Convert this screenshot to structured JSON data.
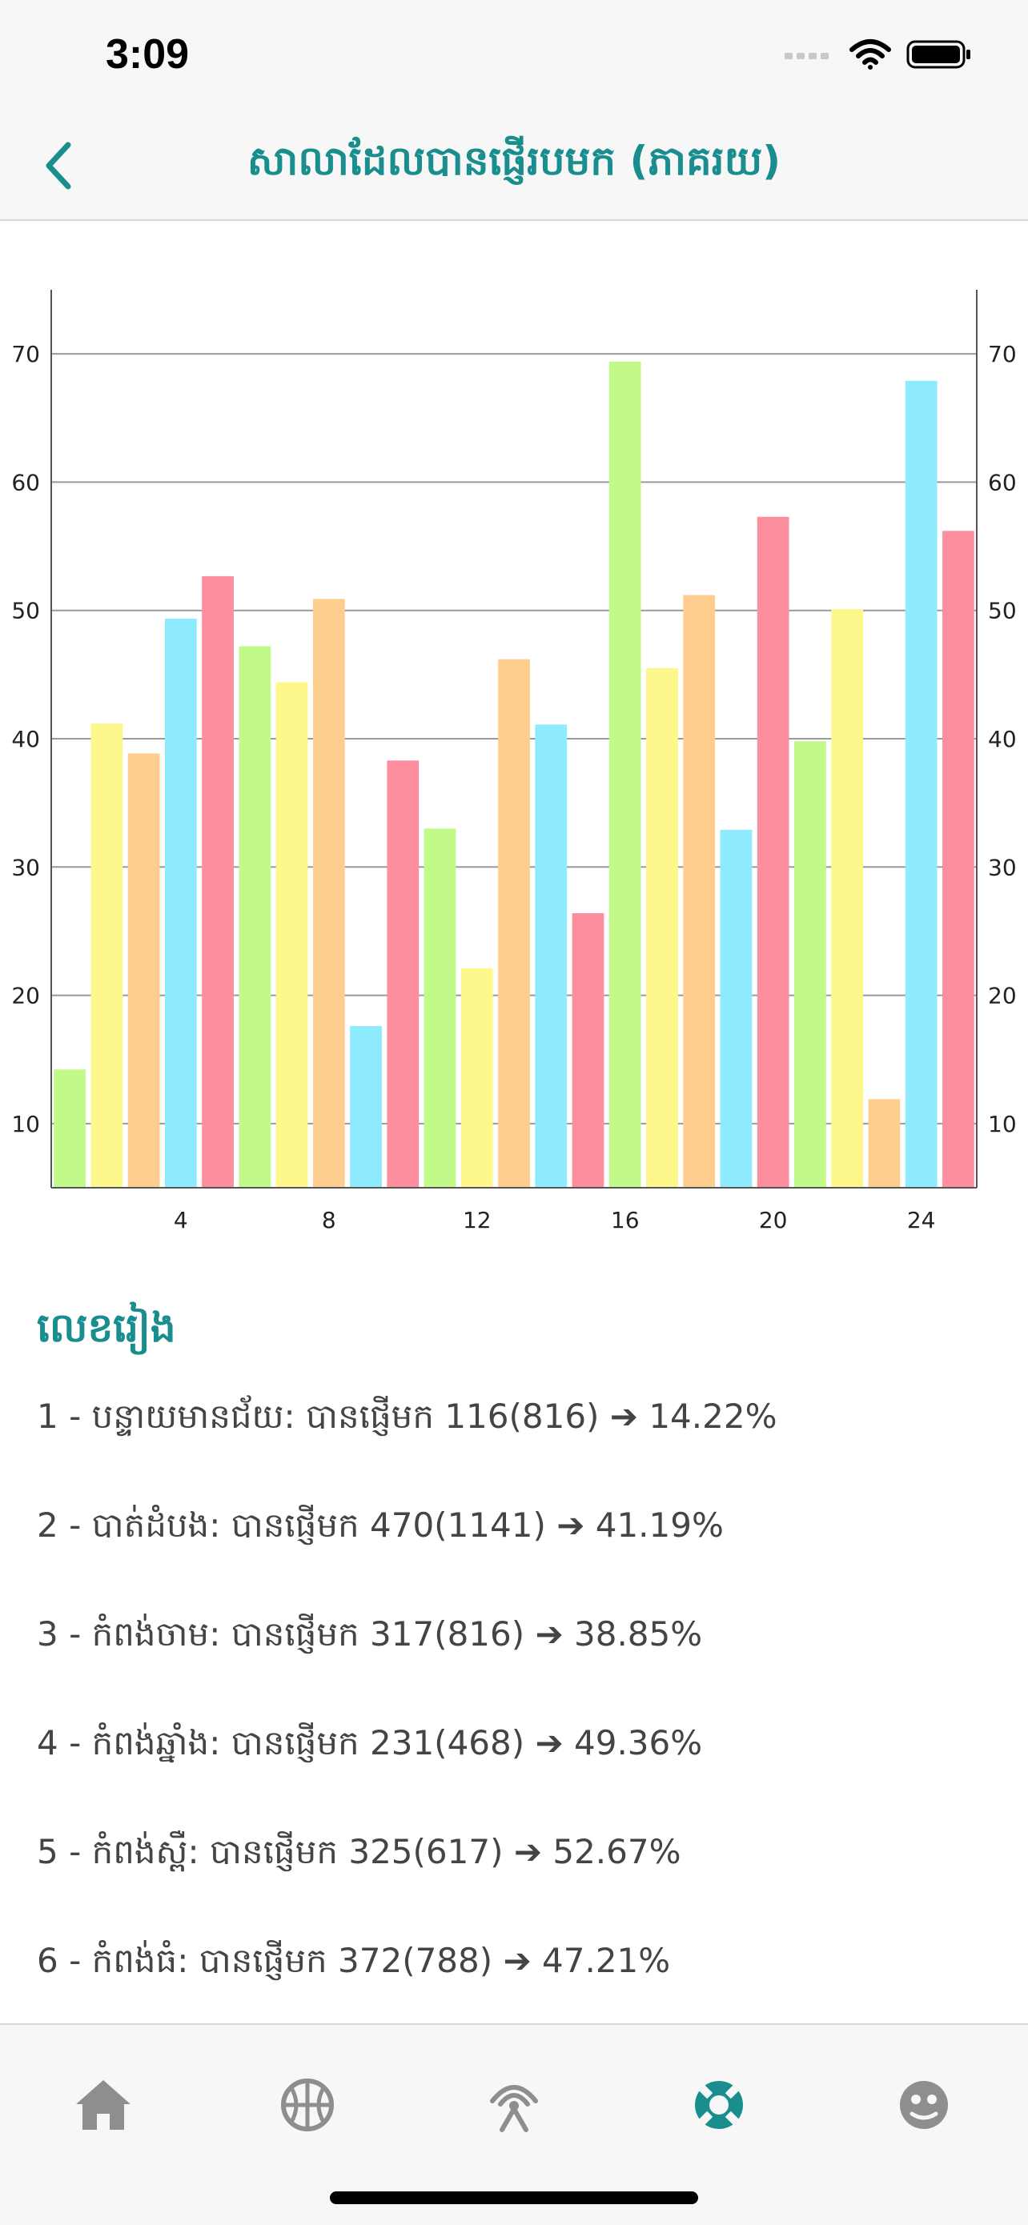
{
  "status_bar": {
    "time": "3:09"
  },
  "header": {
    "title": "សាលាដែលបានផ្ញើរបមក (ភាគរយ)"
  },
  "chart_data": {
    "type": "bar",
    "x": [
      1,
      2,
      3,
      4,
      5,
      6,
      7,
      8,
      9,
      10,
      11,
      12,
      13,
      14,
      15,
      16,
      17,
      18,
      19,
      20,
      21,
      22,
      23,
      24,
      25
    ],
    "values": [
      14.22,
      41.19,
      38.85,
      49.36,
      52.67,
      47.21,
      44.4,
      50.9,
      17.6,
      38.3,
      33.0,
      22.1,
      46.2,
      41.1,
      26.4,
      69.4,
      45.5,
      51.2,
      32.9,
      57.3,
      39.8,
      50.1,
      11.9,
      67.9,
      56.2
    ],
    "x_ticks": [
      4,
      8,
      12,
      16,
      20,
      24
    ],
    "y_ticks": [
      10,
      20,
      30,
      40,
      50,
      60,
      70
    ],
    "ylim": [
      5,
      75
    ],
    "grid": true,
    "palette": [
      "#c2fa8a",
      "#fdf78c",
      "#fece8f",
      "#8eeafd",
      "#fd8e9e"
    ]
  },
  "legend": {
    "title": "លេខរៀង",
    "items": [
      "1 - បន្ទាយមានជ័យ: បានផ្ញើមក 116(816) ➔ 14.22%",
      "2 - បាត់ដំបង: បានផ្ញើមក 470(1141) ➔ 41.19%",
      "3 - កំពង់ចាម: បានផ្ញើមក 317(816) ➔ 38.85%",
      "4 - កំពង់ឆ្នាំង: បានផ្ញើមក 231(468) ➔ 49.36%",
      "5 - កំពង់ស្ពឺ: បានផ្ញើមក 325(617) ➔ 52.67%",
      "6 - កំពង់ធំ: បានផ្ញើមក 372(788) ➔ 47.21%"
    ]
  },
  "tab_bar": {
    "active_color": "#1a8e8e",
    "inactive_color": "#8e8e8e",
    "tabs": [
      "home-icon",
      "basketball-icon",
      "radio-tower-icon",
      "lifebuoy-icon",
      "face-icon"
    ],
    "active_index": 3
  }
}
